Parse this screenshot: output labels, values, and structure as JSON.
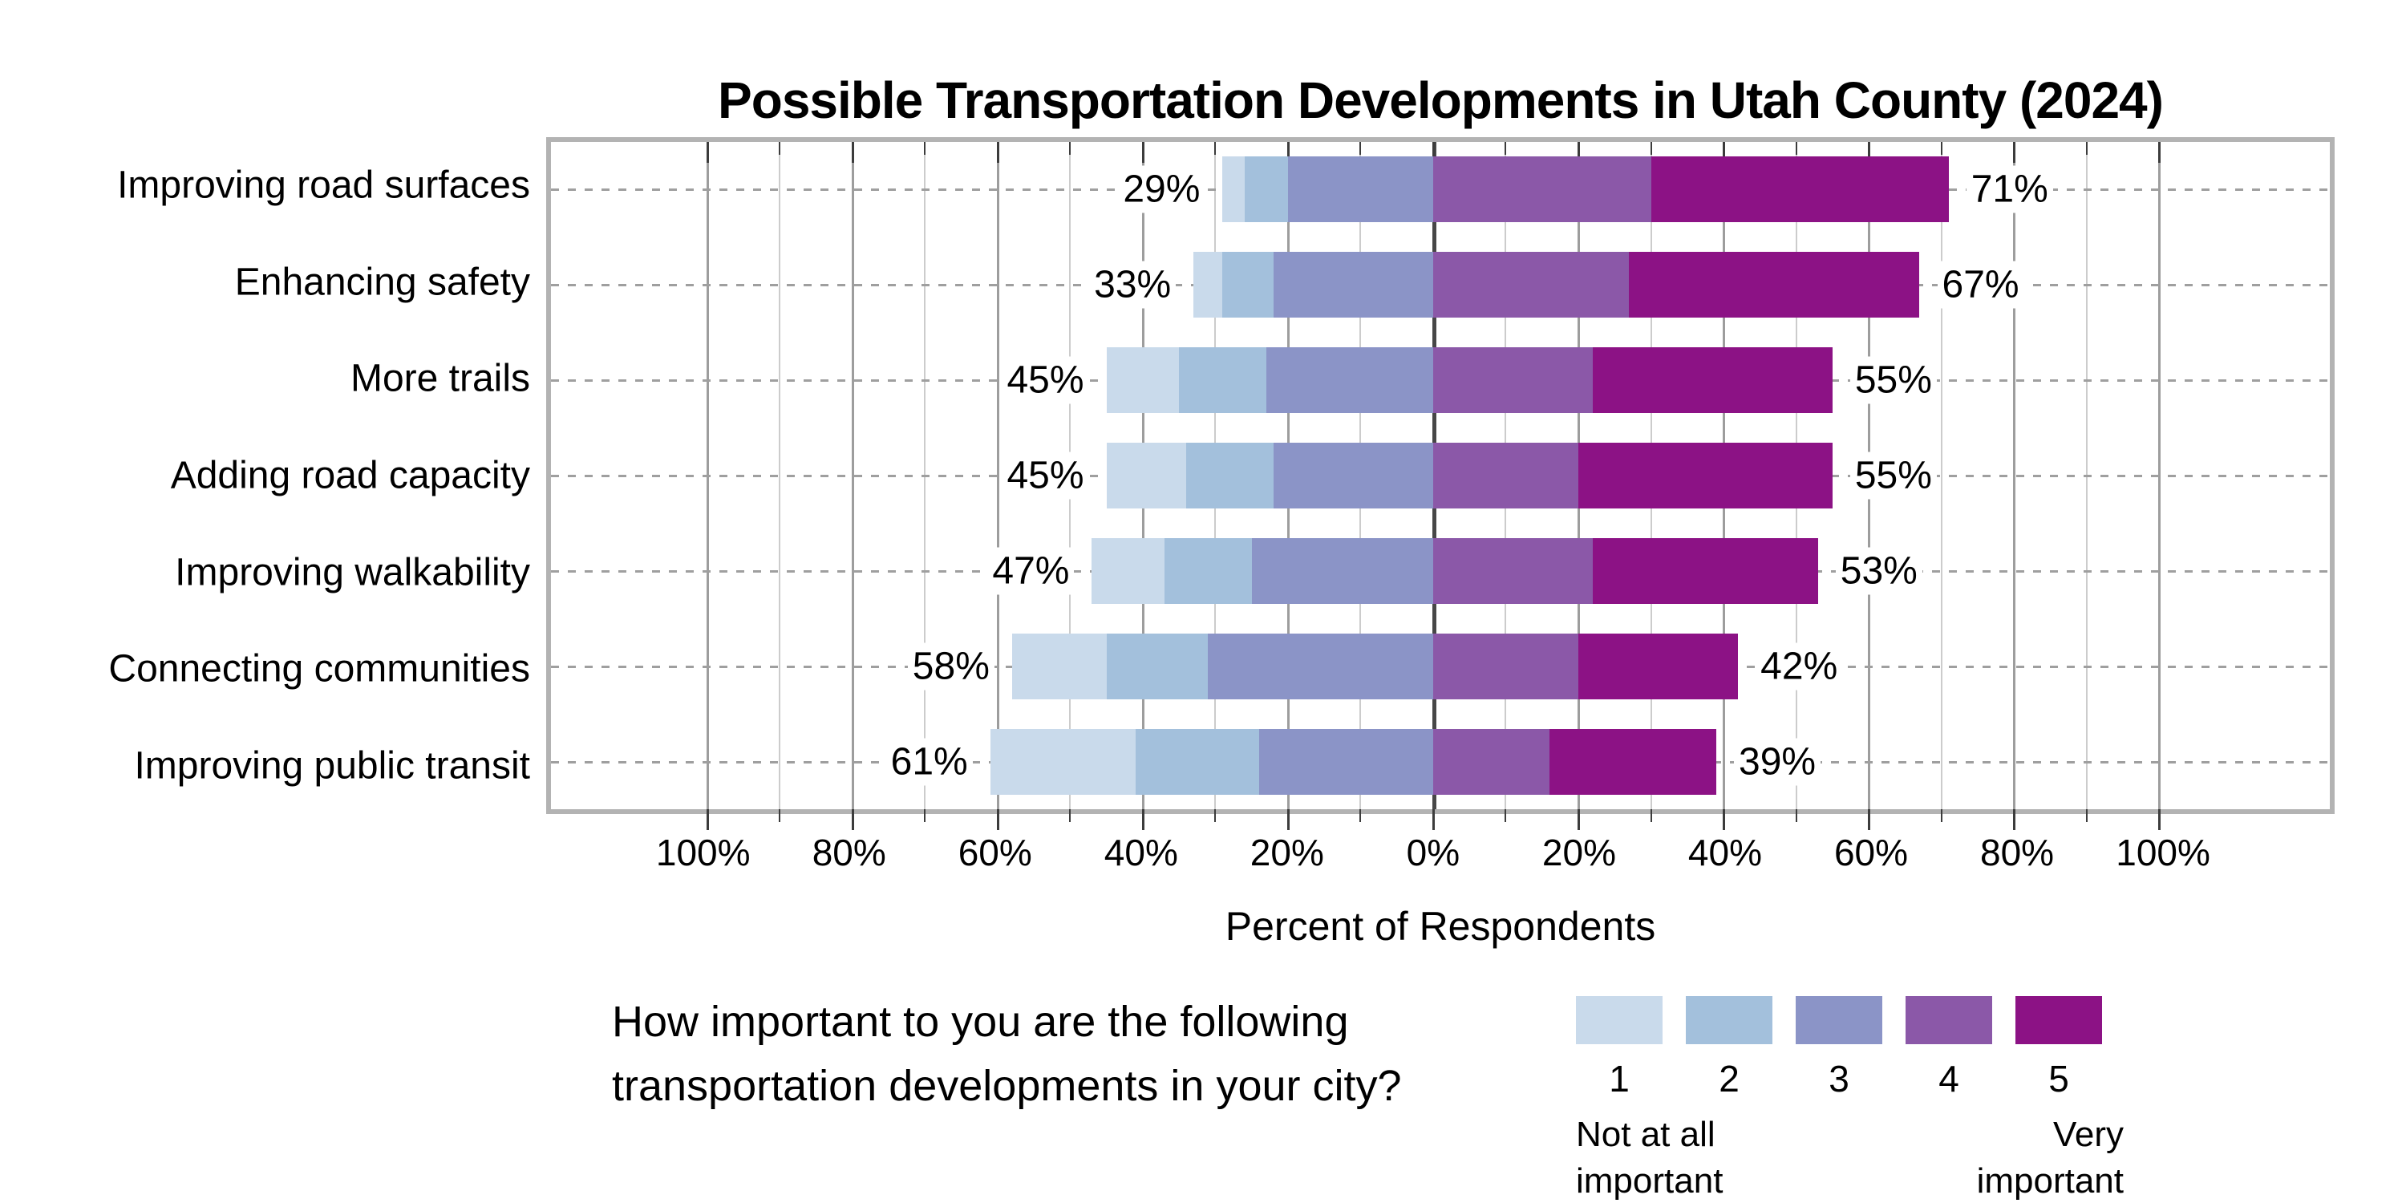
{
  "title": "Possible Transportation Developments in Utah County (2024)",
  "caption": "How important to you are the following\ntransportation developments in your city?",
  "chart_data": {
    "type": "bar",
    "variant": "diverging_stacked_likert",
    "orientation": "horizontal",
    "title": "Possible Transportation Developments in Utah County (2024)",
    "xlabel": "Percent of Respondents",
    "xlim": [
      -121.5,
      123.5
    ],
    "grid": "vertical lines every 10%, darker every 20%, dark line at 0; dashed horizontal line per category",
    "split_rule": "ratings 1-3 plotted left of zero, ratings 4-5 plotted right of zero",
    "ticks": [
      {
        "value": -100,
        "label": "100%"
      },
      {
        "value": -80,
        "label": "80%"
      },
      {
        "value": -60,
        "label": "60%"
      },
      {
        "value": -40,
        "label": "40%"
      },
      {
        "value": -20,
        "label": "20%"
      },
      {
        "value": 0,
        "label": "0%"
      },
      {
        "value": 20,
        "label": "20%"
      },
      {
        "value": 40,
        "label": "40%"
      },
      {
        "value": 60,
        "label": "60%"
      },
      {
        "value": 80,
        "label": "80%"
      },
      {
        "value": 100,
        "label": "100%"
      }
    ],
    "categories": [
      "Improving road surfaces",
      "Enhancing safety",
      "More trails",
      "Adding road capacity",
      "Improving walkability",
      "Connecting communities",
      "Improving public transit"
    ],
    "series": [
      {
        "name": "1",
        "color": "#c9daeb",
        "values": [
          3,
          4,
          10,
          11,
          10,
          13,
          20
        ]
      },
      {
        "name": "2",
        "color": "#a3c0dc",
        "values": [
          6,
          7,
          12,
          12,
          12,
          14,
          17
        ]
      },
      {
        "name": "3",
        "color": "#8b94c7",
        "values": [
          20,
          22,
          23,
          22,
          25,
          31,
          24
        ]
      },
      {
        "name": "4",
        "color": "#8b58a8",
        "values": [
          30,
          27,
          22,
          20,
          22,
          20,
          16
        ]
      },
      {
        "name": "5",
        "color": "#8c1285",
        "values": [
          41,
          40,
          33,
          35,
          31,
          22,
          23
        ]
      }
    ],
    "left_total_labels": [
      "29%",
      "33%",
      "45%",
      "45%",
      "47%",
      "58%",
      "61%"
    ],
    "right_total_labels": [
      "71%",
      "67%",
      "55%",
      "55%",
      "53%",
      "42%",
      "39%"
    ]
  },
  "legend": {
    "items": [
      {
        "label": "1",
        "color": "#c9daeb"
      },
      {
        "label": "2",
        "color": "#a3c0dc"
      },
      {
        "label": "3",
        "color": "#8b94c7"
      },
      {
        "label": "4",
        "color": "#8b58a8"
      },
      {
        "label": "5",
        "color": "#8c1285"
      }
    ],
    "left_caption": "Not at all\nimportant",
    "right_caption": "Very\nimportant"
  }
}
